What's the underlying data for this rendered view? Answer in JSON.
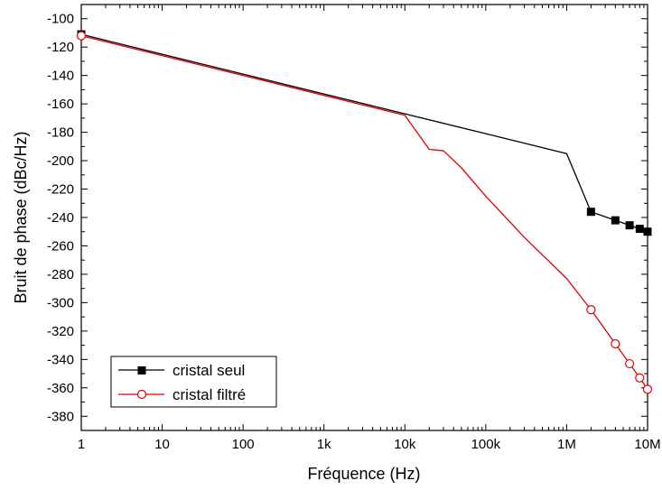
{
  "chart_data": {
    "type": "line",
    "title": "",
    "xlabel": "Fréquence (Hz)",
    "ylabel": "Bruit de phase (dBc/Hz)",
    "xscale": "log",
    "xlim": [
      1,
      10000000
    ],
    "ylim": [
      -390,
      -90
    ],
    "grid": false,
    "legend_position": "bottom-left",
    "x_ticks": [
      {
        "value": 1,
        "label": "1"
      },
      {
        "value": 10,
        "label": "10"
      },
      {
        "value": 100,
        "label": "100"
      },
      {
        "value": 1000,
        "label": "1k"
      },
      {
        "value": 10000,
        "label": "10k"
      },
      {
        "value": 100000,
        "label": "100k"
      },
      {
        "value": 1000000,
        "label": "1M"
      },
      {
        "value": 10000000,
        "label": "10M"
      }
    ],
    "y_ticks": [
      {
        "value": -100,
        "label": "-100"
      },
      {
        "value": -120,
        "label": "-120"
      },
      {
        "value": -140,
        "label": "-140"
      },
      {
        "value": -160,
        "label": "-160"
      },
      {
        "value": -180,
        "label": "-180"
      },
      {
        "value": -200,
        "label": "-200"
      },
      {
        "value": -220,
        "label": "-220"
      },
      {
        "value": -240,
        "label": "-240"
      },
      {
        "value": -260,
        "label": "-260"
      },
      {
        "value": -280,
        "label": "-280"
      },
      {
        "value": -300,
        "label": "-300"
      },
      {
        "value": -320,
        "label": "-320"
      },
      {
        "value": -340,
        "label": "-340"
      },
      {
        "value": -360,
        "label": "-360"
      },
      {
        "value": -380,
        "label": "-380"
      }
    ],
    "series": [
      {
        "name": "cristal seul",
        "color": "#000000",
        "marker": "filled-square",
        "line": [
          [
            1,
            -111
          ],
          [
            10,
            -125
          ],
          [
            100,
            -139
          ],
          [
            1000,
            -153
          ],
          [
            10000,
            -167
          ],
          [
            100000,
            -181
          ],
          [
            1000000,
            -195
          ],
          [
            2000000,
            -236
          ],
          [
            4000000,
            -242
          ],
          [
            6000000,
            -245.5
          ],
          [
            8000000,
            -248
          ],
          [
            10000000,
            -250
          ]
        ],
        "points": [
          [
            1,
            -111
          ],
          [
            2000000,
            -236
          ],
          [
            4000000,
            -242
          ],
          [
            6000000,
            -245.5
          ],
          [
            8000000,
            -248
          ],
          [
            10000000,
            -250
          ]
        ]
      },
      {
        "name": "cristal filtré",
        "color": "#e00000",
        "marker": "open-circle",
        "line": [
          [
            1,
            -112
          ],
          [
            10,
            -126
          ],
          [
            100,
            -140
          ],
          [
            1000,
            -154
          ],
          [
            10000,
            -168
          ],
          [
            20000,
            -192
          ],
          [
            30000,
            -193
          ],
          [
            50000,
            -205
          ],
          [
            100000,
            -225
          ],
          [
            300000,
            -254
          ],
          [
            1000000,
            -283
          ],
          [
            2000000,
            -305
          ],
          [
            4000000,
            -329
          ],
          [
            6000000,
            -343
          ],
          [
            8000000,
            -353
          ],
          [
            10000000,
            -361
          ]
        ],
        "points": [
          [
            1,
            -112
          ],
          [
            2000000,
            -305
          ],
          [
            4000000,
            -329
          ],
          [
            6000000,
            -343
          ],
          [
            8000000,
            -353
          ],
          [
            10000000,
            -361
          ]
        ]
      }
    ]
  }
}
